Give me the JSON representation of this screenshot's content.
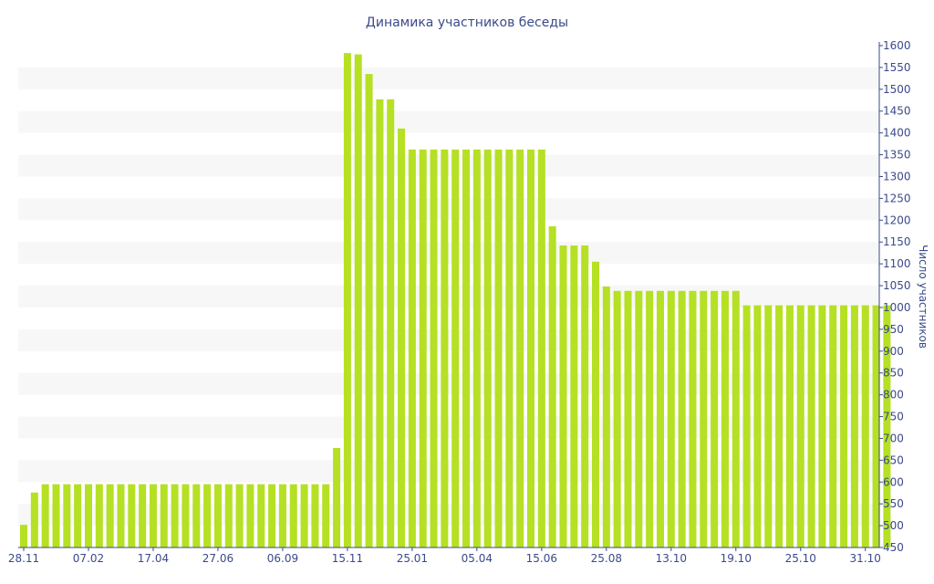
{
  "chart_data": {
    "type": "bar",
    "title": "Динамика участников беседы",
    "ylabel": "Число участников",
    "xlabel": "",
    "ylim": [
      450,
      1600
    ],
    "y_ticks": [
      450,
      500,
      550,
      600,
      650,
      700,
      750,
      800,
      850,
      900,
      950,
      1000,
      1050,
      1100,
      1150,
      1200,
      1250,
      1300,
      1350,
      1400,
      1450,
      1500,
      1550,
      1600
    ],
    "x_tick_labels": [
      "28.11",
      "07.02",
      "17.04",
      "27.06",
      "06.09",
      "15.11",
      "25.01",
      "05.04",
      "15.06",
      "25.08",
      "13.10",
      "19.10",
      "25.10",
      "31.10"
    ],
    "x_tick_bar_index": [
      0,
      6,
      12,
      18,
      24,
      30,
      36,
      42,
      48,
      54,
      60,
      66,
      72,
      78
    ],
    "grid": "horizontal-bands",
    "bar_color": "#b5e024",
    "band_color": "#f7f7f7",
    "axis_color": "#3a4a8a",
    "values": [
      502,
      576,
      595,
      595,
      595,
      595,
      595,
      595,
      595,
      595,
      595,
      595,
      595,
      595,
      595,
      595,
      595,
      595,
      595,
      595,
      595,
      595,
      595,
      595,
      595,
      595,
      595,
      595,
      595,
      678,
      1583,
      1580,
      1535,
      1477,
      1477,
      1410,
      1362,
      1362,
      1362,
      1362,
      1362,
      1362,
      1362,
      1362,
      1362,
      1362,
      1362,
      1362,
      1362,
      1186,
      1142,
      1142,
      1142,
      1105,
      1048,
      1038,
      1038,
      1038,
      1038,
      1038,
      1038,
      1038,
      1038,
      1038,
      1038,
      1038,
      1038,
      1005,
      1005,
      1005,
      1005,
      1005,
      1005,
      1005,
      1005,
      1005,
      1005,
      1005,
      1005,
      1005,
      1005
    ]
  }
}
